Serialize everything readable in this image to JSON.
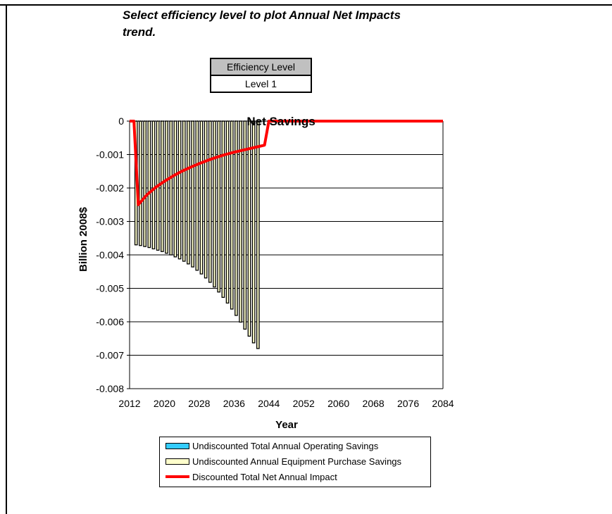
{
  "page": {
    "instruction": "Select efficiency level to plot Annual Net Impacts trend.",
    "efficiency_header": "Efficiency Level",
    "efficiency_value": "Level 1"
  },
  "chart_data": {
    "type": "bar",
    "title": "Net Savings",
    "xlabel": "Year",
    "ylabel": "Billion 2008$",
    "xlim": [
      2012,
      2084
    ],
    "ylim": [
      -0.008,
      0
    ],
    "x_ticks": [
      2012,
      2020,
      2028,
      2036,
      2044,
      2052,
      2060,
      2068,
      2076,
      2084
    ],
    "x_tick_labels": [
      "2012",
      "2020",
      "2028",
      "2036",
      "2044",
      "2052",
      "2060",
      "2068",
      "2076",
      "2084"
    ],
    "y_ticks": [
      0,
      -0.001,
      -0.002,
      -0.003,
      -0.004,
      -0.005,
      -0.006,
      -0.007,
      -0.008
    ],
    "y_tick_labels": [
      "0",
      "-0.001",
      "-0.002",
      "-0.003",
      "-0.004",
      "-0.005",
      "-0.006",
      "-0.007",
      "-0.008"
    ],
    "grid": true,
    "legend_position": "bottom",
    "x": [
      2013,
      2014,
      2015,
      2016,
      2017,
      2018,
      2019,
      2020,
      2021,
      2022,
      2023,
      2024,
      2025,
      2026,
      2027,
      2028,
      2029,
      2030,
      2031,
      2032,
      2033,
      2034,
      2035,
      2036,
      2037,
      2038,
      2039,
      2040,
      2041,
      2042
    ],
    "series": [
      {
        "name": "Undiscounted Total Annual Operating Savings",
        "type": "bar",
        "color": "#33ccff",
        "values": [
          0,
          0,
          0,
          0,
          0,
          0,
          0,
          0,
          0,
          0,
          0,
          0,
          0,
          0,
          0,
          0,
          0,
          0,
          0,
          0,
          0,
          0,
          0,
          0,
          0,
          0,
          0,
          0,
          0,
          0
        ]
      },
      {
        "name": "Undiscounted Annual Equipment Purchase Savings",
        "type": "bar",
        "color": "#ffffcc",
        "values": [
          0,
          -0.0037,
          -0.00372,
          -0.00375,
          -0.00378,
          -0.00382,
          -0.00386,
          -0.0039,
          -0.00395,
          -0.004,
          -0.00406,
          -0.00412,
          -0.00419,
          -0.00427,
          -0.00436,
          -0.00446,
          -0.00457,
          -0.00469,
          -0.00482,
          -0.00496,
          -0.00511,
          -0.00527,
          -0.00544,
          -0.00562,
          -0.00581,
          -0.00601,
          -0.00622,
          -0.00643,
          -0.00663,
          -0.0068
        ]
      },
      {
        "name": "Discounted Total Net Annual Impact",
        "type": "line",
        "color": "#ff0000",
        "x": [
          2012,
          2013,
          2014,
          2016,
          2018,
          2020,
          2022,
          2024,
          2026,
          2028,
          2030,
          2032,
          2034,
          2036,
          2038,
          2040,
          2042,
          2043,
          2044,
          2052,
          2060,
          2068,
          2076,
          2084
        ],
        "values": [
          0,
          0,
          -0.0025,
          -0.0022,
          -0.00198,
          -0.0018,
          -0.00164,
          -0.0015,
          -0.00138,
          -0.00127,
          -0.00117,
          -0.00108,
          -0.001,
          -0.00093,
          -0.00087,
          -0.00081,
          -0.00075,
          -0.00072,
          0,
          0,
          0,
          0,
          0,
          0
        ]
      }
    ]
  }
}
